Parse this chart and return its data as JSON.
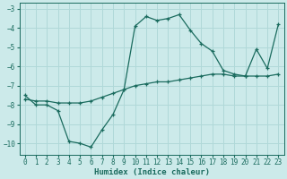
{
  "xlabel": "Humidex (Indice chaleur)",
  "xlim": [
    -0.5,
    23.5
  ],
  "ylim": [
    -10.6,
    -2.7
  ],
  "yticks": [
    -10,
    -9,
    -8,
    -7,
    -6,
    -5,
    -4,
    -3
  ],
  "xticks": [
    0,
    1,
    2,
    3,
    4,
    5,
    6,
    7,
    8,
    9,
    10,
    11,
    12,
    13,
    14,
    15,
    16,
    17,
    18,
    19,
    20,
    21,
    22,
    23
  ],
  "bg_color": "#cceaea",
  "line_color": "#1a6b5e",
  "grid_color": "#b0d8d8",
  "line1_x": [
    0,
    1,
    2,
    3,
    4,
    5,
    6,
    7,
    8,
    9,
    10,
    11,
    12,
    13,
    14,
    15,
    16,
    17,
    18,
    19,
    20,
    21,
    22,
    23
  ],
  "line1_y": [
    -7.5,
    -8.0,
    -8.0,
    -8.3,
    -9.9,
    -10.0,
    -10.2,
    -9.3,
    -8.5,
    -7.2,
    -3.9,
    -3.4,
    -3.6,
    -3.5,
    -3.3,
    -4.1,
    -4.8,
    -5.2,
    -6.2,
    -6.4,
    -6.5,
    -5.1,
    -6.1,
    -3.8
  ],
  "line2_x": [
    0,
    1,
    2,
    3,
    4,
    5,
    6,
    7,
    8,
    9,
    10,
    11,
    12,
    13,
    14,
    15,
    16,
    17,
    18,
    19,
    20,
    21,
    22,
    23
  ],
  "line2_y": [
    -7.7,
    -7.8,
    -7.8,
    -7.9,
    -7.9,
    -7.9,
    -7.8,
    -7.6,
    -7.4,
    -7.2,
    -7.0,
    -6.9,
    -6.8,
    -6.8,
    -6.7,
    -6.6,
    -6.5,
    -6.4,
    -6.4,
    -6.5,
    -6.5,
    -6.5,
    -6.5,
    -6.4
  ]
}
